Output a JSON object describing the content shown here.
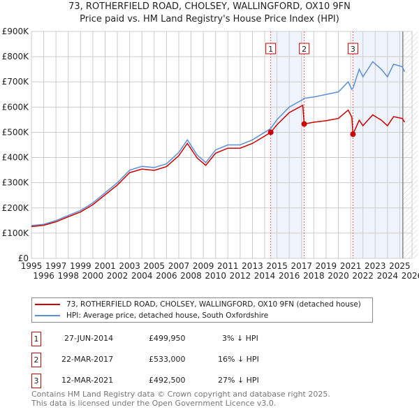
{
  "title_line1": "73, ROTHERFIELD ROAD, CHOLSEY, WALLINGFORD, OX10 9FN",
  "title_line2": "Price paid vs. HM Land Registry's House Price Index (HPI)",
  "chart_data": {
    "type": "line",
    "xlim": [
      1995,
      2026
    ],
    "ylim": [
      0,
      900000
    ],
    "x_ticks": [
      "1995",
      "1996",
      "1997",
      "1998",
      "1999",
      "2000",
      "2001",
      "2002",
      "2003",
      "2004",
      "2005",
      "2006",
      "2007",
      "2008",
      "2009",
      "2010",
      "2011",
      "2012",
      "2013",
      "2014",
      "2015",
      "2016",
      "2017",
      "2018",
      "2019",
      "2020",
      "2021",
      "2022",
      "2023",
      "2024",
      "2025",
      "2026"
    ],
    "y_ticks": [
      {
        "v": 0,
        "label": "£0"
      },
      {
        "v": 100000,
        "label": "£100K"
      },
      {
        "v": 200000,
        "label": "£200K"
      },
      {
        "v": 300000,
        "label": "£300K"
      },
      {
        "v": 400000,
        "label": "£400K"
      },
      {
        "v": 500000,
        "label": "£500K"
      },
      {
        "v": 600000,
        "label": "£600K"
      },
      {
        "v": 700000,
        "label": "£700K"
      },
      {
        "v": 800000,
        "label": "£800K"
      },
      {
        "v": 900000,
        "label": "£900K"
      }
    ],
    "series": [
      {
        "name": "73, ROTHERFIELD ROAD, CHOLSEY, WALLINGFORD, OX10 9FN (detached house)",
        "color": "#cc0000",
        "x": [
          1995,
          1996,
          1997,
          1998,
          1999,
          2000,
          2001,
          2002,
          2003,
          2004,
          2005,
          2006,
          2007,
          2007.7,
          2008.5,
          2009.2,
          2010,
          2011,
          2012,
          2013,
          2014,
          2014.49,
          2015,
          2016,
          2017.1,
          2017.22,
          2018,
          2019,
          2020,
          2020.8,
          2021.1,
          2021.19,
          2021.7,
          2022,
          2022.8,
          2023.5,
          2024,
          2024.5,
          2025.2,
          2025.4
        ],
        "y": [
          126000,
          131000,
          145000,
          165000,
          184000,
          213000,
          252000,
          291000,
          340000,
          354000,
          349000,
          364000,
          407000,
          456000,
          398000,
          369000,
          417000,
          437000,
          437000,
          456000,
          485000,
          499950,
          530000,
          578000,
          607000,
          533000,
          540000,
          546000,
          555000,
          588000,
          560000,
          492500,
          548000,
          526000,
          569000,
          548000,
          526000,
          562000,
          555000,
          540000
        ]
      },
      {
        "name": "HPI: Average price, detached house, South Oxfordshire",
        "color": "#5b8fd6",
        "x": [
          1995,
          1996,
          1997,
          1998,
          1999,
          2000,
          2001,
          2002,
          2003,
          2004,
          2005,
          2006,
          2007,
          2007.7,
          2008.5,
          2009.2,
          2010,
          2011,
          2012,
          2013,
          2014,
          2014.49,
          2015,
          2016,
          2017.1,
          2017.22,
          2018,
          2019,
          2020,
          2020.8,
          2021.1,
          2021.19,
          2021.7,
          2022,
          2022.8,
          2023.5,
          2024,
          2024.5,
          2025.2,
          2025.4
        ],
        "y": [
          130000,
          135000,
          150000,
          170000,
          190000,
          220000,
          260000,
          300000,
          350000,
          365000,
          360000,
          375000,
          420000,
          470000,
          410000,
          380000,
          430000,
          450000,
          450000,
          470000,
          500000,
          515000,
          550000,
          600000,
          630000,
          635000,
          640000,
          650000,
          660000,
          700000,
          670000,
          675000,
          750000,
          720000,
          780000,
          750000,
          720000,
          770000,
          760000,
          740000
        ]
      }
    ],
    "sales": [
      {
        "id": "1",
        "x": 2014.49,
        "date": "27-JUN-2014",
        "price": "£499,950",
        "value": 499950,
        "hpi": "3% ↓ HPI"
      },
      {
        "id": "2",
        "x": 2017.22,
        "date": "22-MAR-2017",
        "price": "£533,000",
        "value": 533000,
        "hpi": "16% ↓ HPI"
      },
      {
        "id": "3",
        "x": 2021.19,
        "date": "12-MAR-2021",
        "price": "£492,500",
        "value": 492500,
        "hpi": "27% ↓ HPI"
      }
    ],
    "data_end": 2025.25
  },
  "footer_line1": "Contains HM Land Registry data © Crown copyright and database right 2025.",
  "footer_line2": "This data is licensed under the Open Government Licence v3.0."
}
